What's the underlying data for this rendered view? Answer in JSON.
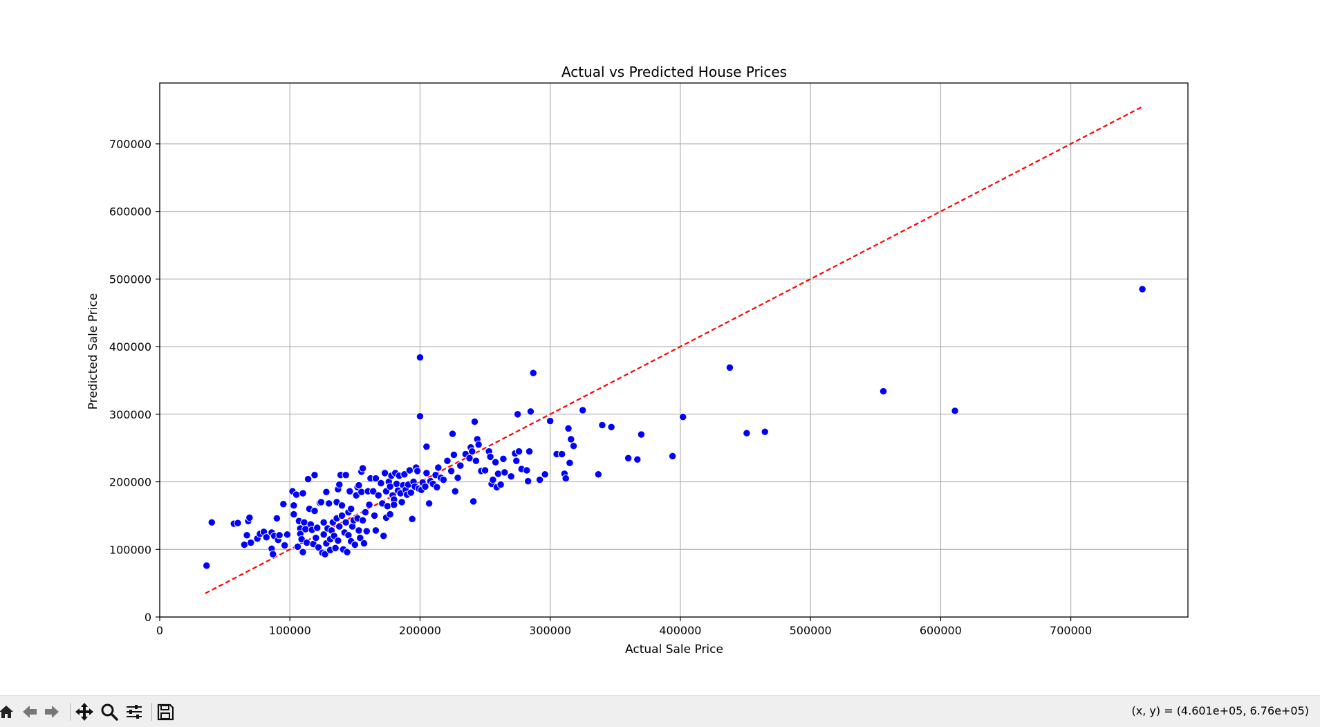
{
  "chart_data": {
    "type": "scatter",
    "title": "Actual vs Predicted House Prices",
    "xlabel": "Actual Sale Price",
    "ylabel": "Predicted Sale Price",
    "xlim": [
      0,
      790000
    ],
    "ylim": [
      0,
      790000
    ],
    "xticks": [
      0,
      100000,
      200000,
      300000,
      400000,
      500000,
      600000,
      700000
    ],
    "yticks": [
      0,
      100000,
      200000,
      300000,
      400000,
      500000,
      600000,
      700000
    ],
    "grid": true,
    "point_color": "#0000ff",
    "line_color": "#ff0000",
    "reference_line": {
      "style": "dashed",
      "x": [
        35000,
        755000
      ],
      "y": [
        35000,
        755000
      ]
    },
    "points": [
      [
        36000,
        76000
      ],
      [
        40000,
        140000
      ],
      [
        57000,
        138000
      ],
      [
        60000,
        139000
      ],
      [
        65000,
        107000
      ],
      [
        67000,
        121000
      ],
      [
        68000,
        142000
      ],
      [
        69000,
        147000
      ],
      [
        70000,
        110000
      ],
      [
        75000,
        116000
      ],
      [
        77000,
        123000
      ],
      [
        80000,
        126000
      ],
      [
        82000,
        118000
      ],
      [
        86000,
        125000
      ],
      [
        86000,
        101000
      ],
      [
        87000,
        93000
      ],
      [
        88000,
        120000
      ],
      [
        90000,
        146000
      ],
      [
        91000,
        114000
      ],
      [
        92000,
        121000
      ],
      [
        95000,
        167000
      ],
      [
        96000,
        106000
      ],
      [
        98000,
        122000
      ],
      [
        102000,
        186000
      ],
      [
        103000,
        152000
      ],
      [
        103000,
        165000
      ],
      [
        105000,
        181000
      ],
      [
        106000,
        104000
      ],
      [
        107000,
        142000
      ],
      [
        108000,
        131000
      ],
      [
        108000,
        123000
      ],
      [
        109000,
        115000
      ],
      [
        110000,
        183000
      ],
      [
        110000,
        96000
      ],
      [
        111000,
        140000
      ],
      [
        112000,
        130000
      ],
      [
        113000,
        110000
      ],
      [
        114000,
        204000
      ],
      [
        115000,
        160000
      ],
      [
        116000,
        137000
      ],
      [
        117000,
        129000
      ],
      [
        118000,
        108000
      ],
      [
        119000,
        210000
      ],
      [
        119000,
        157000
      ],
      [
        120000,
        117000
      ],
      [
        121000,
        132000
      ],
      [
        122000,
        103000
      ],
      [
        123000,
        169000
      ],
      [
        124000,
        170000
      ],
      [
        125000,
        95000
      ],
      [
        126000,
        140000
      ],
      [
        126000,
        122000
      ],
      [
        127000,
        93000
      ],
      [
        128000,
        185000
      ],
      [
        128000,
        109000
      ],
      [
        129000,
        131000
      ],
      [
        130000,
        168000
      ],
      [
        131000,
        115000
      ],
      [
        131000,
        99000
      ],
      [
        132000,
        128000
      ],
      [
        133000,
        140000
      ],
      [
        134000,
        120000
      ],
      [
        135000,
        102000
      ],
      [
        136000,
        170000
      ],
      [
        136000,
        146000
      ],
      [
        137000,
        189000
      ],
      [
        137000,
        113000
      ],
      [
        138000,
        196000
      ],
      [
        138000,
        134000
      ],
      [
        139000,
        210000
      ],
      [
        140000,
        165000
      ],
      [
        140000,
        150000
      ],
      [
        141000,
        100000
      ],
      [
        142000,
        125000
      ],
      [
        143000,
        210000
      ],
      [
        143000,
        140000
      ],
      [
        144000,
        96000
      ],
      [
        145000,
        155000
      ],
      [
        145000,
        121000
      ],
      [
        146000,
        186000
      ],
      [
        147000,
        160000
      ],
      [
        147000,
        112000
      ],
      [
        148000,
        134000
      ],
      [
        149000,
        143000
      ],
      [
        150000,
        107000
      ],
      [
        151000,
        180000
      ],
      [
        152000,
        192000
      ],
      [
        152000,
        146000
      ],
      [
        153000,
        195000
      ],
      [
        153000,
        128000
      ],
      [
        154000,
        117000
      ],
      [
        155000,
        215000
      ],
      [
        155000,
        185000
      ],
      [
        156000,
        220000
      ],
      [
        156000,
        143000
      ],
      [
        157000,
        109000
      ],
      [
        158000,
        155000
      ],
      [
        159000,
        127000
      ],
      [
        160000,
        186000
      ],
      [
        161000,
        166000
      ],
      [
        162000,
        205000
      ],
      [
        164000,
        186000
      ],
      [
        165000,
        150000
      ],
      [
        166000,
        205000
      ],
      [
        166000,
        128000
      ],
      [
        168000,
        180000
      ],
      [
        170000,
        198000
      ],
      [
        171000,
        168000
      ],
      [
        172000,
        120000
      ],
      [
        173000,
        213000
      ],
      [
        174000,
        186000
      ],
      [
        174000,
        147000
      ],
      [
        175000,
        164000
      ],
      [
        176000,
        200000
      ],
      [
        177000,
        193000
      ],
      [
        177000,
        152000
      ],
      [
        178000,
        209000
      ],
      [
        179000,
        180000
      ],
      [
        180000,
        174000
      ],
      [
        180000,
        166000
      ],
      [
        181000,
        213000
      ],
      [
        182000,
        197000
      ],
      [
        183000,
        187000
      ],
      [
        184000,
        209000
      ],
      [
        185000,
        183000
      ],
      [
        186000,
        170000
      ],
      [
        187000,
        195000
      ],
      [
        188000,
        211000
      ],
      [
        189000,
        188000
      ],
      [
        190000,
        181000
      ],
      [
        191000,
        196000
      ],
      [
        192000,
        217000
      ],
      [
        193000,
        184000
      ],
      [
        194000,
        145000
      ],
      [
        195000,
        200000
      ],
      [
        196000,
        193000
      ],
      [
        197000,
        221000
      ],
      [
        198000,
        216000
      ],
      [
        199000,
        190000
      ],
      [
        200000,
        384000
      ],
      [
        200000,
        297000
      ],
      [
        201000,
        188000
      ],
      [
        202000,
        199000
      ],
      [
        204000,
        193000
      ],
      [
        205000,
        252000
      ],
      [
        205000,
        213000
      ],
      [
        207000,
        168000
      ],
      [
        208000,
        201000
      ],
      [
        210000,
        197000
      ],
      [
        212000,
        210000
      ],
      [
        213000,
        192000
      ],
      [
        214000,
        221000
      ],
      [
        216000,
        206000
      ],
      [
        218000,
        203000
      ],
      [
        221000,
        231000
      ],
      [
        224000,
        216000
      ],
      [
        225000,
        271000
      ],
      [
        226000,
        240000
      ],
      [
        227000,
        186000
      ],
      [
        229000,
        206000
      ],
      [
        231000,
        224000
      ],
      [
        235000,
        241000
      ],
      [
        238000,
        235000
      ],
      [
        239000,
        251000
      ],
      [
        240000,
        245000
      ],
      [
        241000,
        171000
      ],
      [
        242000,
        289000
      ],
      [
        243000,
        231000
      ],
      [
        244000,
        263000
      ],
      [
        245000,
        255000
      ],
      [
        247000,
        216000
      ],
      [
        250000,
        217000
      ],
      [
        253000,
        245000
      ],
      [
        254000,
        237000
      ],
      [
        255000,
        197000
      ],
      [
        256000,
        203000
      ],
      [
        258000,
        229000
      ],
      [
        259000,
        192000
      ],
      [
        260000,
        212000
      ],
      [
        262000,
        196000
      ],
      [
        264000,
        234000
      ],
      [
        265000,
        214000
      ],
      [
        270000,
        208000
      ],
      [
        273000,
        242000
      ],
      [
        274000,
        231000
      ],
      [
        275000,
        300000
      ],
      [
        276000,
        245000
      ],
      [
        278000,
        219000
      ],
      [
        282000,
        217000
      ],
      [
        283000,
        201000
      ],
      [
        284000,
        245000
      ],
      [
        285000,
        304000
      ],
      [
        287000,
        361000
      ],
      [
        292000,
        203000
      ],
      [
        296000,
        211000
      ],
      [
        300000,
        290000
      ],
      [
        305000,
        241000
      ],
      [
        309000,
        241000
      ],
      [
        311000,
        212000
      ],
      [
        312000,
        205000
      ],
      [
        314000,
        279000
      ],
      [
        315000,
        228000
      ],
      [
        316000,
        263000
      ],
      [
        318000,
        253000
      ],
      [
        325000,
        306000
      ],
      [
        337000,
        211000
      ],
      [
        340000,
        284000
      ],
      [
        347000,
        281000
      ],
      [
        360000,
        235000
      ],
      [
        367000,
        233000
      ],
      [
        370000,
        270000
      ],
      [
        394000,
        238000
      ],
      [
        402000,
        296000
      ],
      [
        438000,
        369000
      ],
      [
        451000,
        272000
      ],
      [
        465000,
        274000
      ],
      [
        556000,
        334000
      ],
      [
        611000,
        305000
      ],
      [
        755000,
        485000
      ]
    ]
  },
  "toolbar": {
    "coord_readout": "(x, y) = (4.601e+05, 6.76e+05)",
    "buttons": [
      "home-icon",
      "back-icon",
      "forward-icon",
      "pan-icon",
      "zoom-icon",
      "configure-icon",
      "save-icon"
    ]
  }
}
